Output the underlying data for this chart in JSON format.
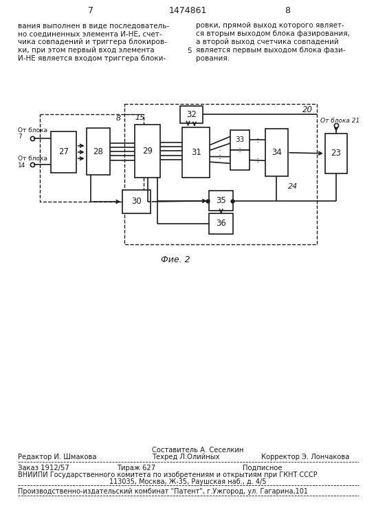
{
  "page_number_left": "7",
  "page_number_center": "1474861",
  "page_number_right": "8",
  "text_left": "вания выполнен в виде последователь-\nно соединенных элемента И-НЕ, счет-\nчика совпадений и триггера блокиров-\nки, при этом первый вход элемента\nИ-НЕ является входом триггера блоки-",
  "line_number": "5",
  "text_right": "ровки, прямой выход которого являет-\nся вторым выходом блока фазирования,\nа второй выход счетчика совпадений\nявляется первым выходом блока фази-\nрования.",
  "fig_label": "Фие. 2",
  "footer_line1_left": "Редактор И. Шмакова",
  "footer_line1_center_top": "Составитель А. Сеселкин",
  "footer_line1_center_bot": "Техред Л.Олийных",
  "footer_line1_right": "Корректор Э. Лончакова",
  "footer_line2_col1": "Заказ 1912/57",
  "footer_line2_col2": "Тираж 627",
  "footer_line2_col3": "Подписное",
  "footer_line3": "ВНИИПИ Государственного комитета по изобретениям и открытиям при ГКНТ СССР",
  "footer_line4": "113035, Москва, Ж-35, Раушская наб., д. 4/5",
  "footer_line5": "Производственно-издательский комбинат \"Патент\", г.Ужгород, ул. Гагарина,101",
  "bg_color": "#ffffff",
  "text_color": "#1a1a1a",
  "box_color": "#1a1a1a",
  "line_color": "#1a1a1a"
}
